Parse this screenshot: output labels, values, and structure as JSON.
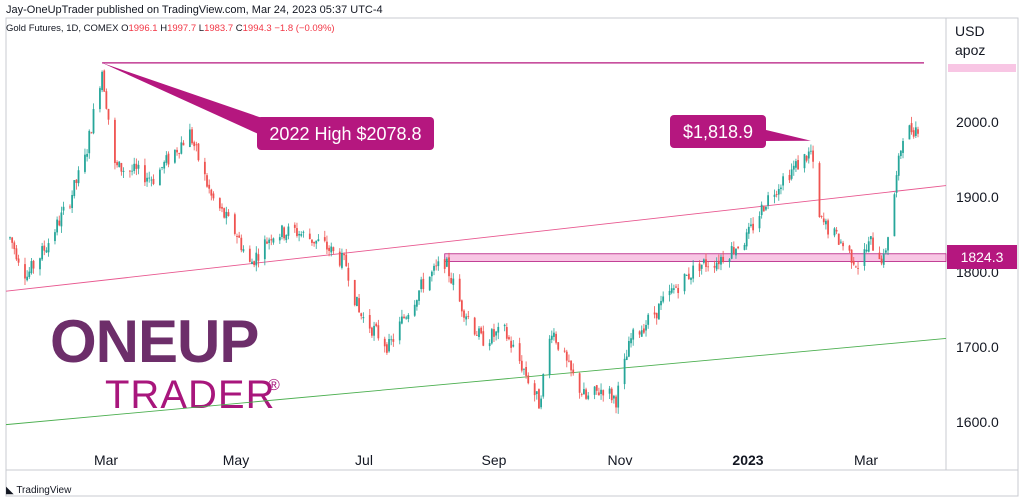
{
  "header": {
    "published": "Jay-OneUpTrader published on TradingView.com, Mar 24, 2023 05:37 UTC-4"
  },
  "symbol_line": {
    "name": "Gold Futures, 1D, COMEX",
    "o_label": "O",
    "o_value": "1996.1",
    "h_label": "H",
    "h_value": "1997.7",
    "l_label": "L",
    "l_value": "1983.7",
    "c_label": "C",
    "c_value": "1994.3",
    "change": "−1.8 (−0.09%)"
  },
  "footer": {
    "brand": "TradingView",
    "logo_icon": "tradingview-logo-icon"
  },
  "logo": {
    "line1": "ONEUP",
    "line2": "TRADER",
    "registered": "®"
  },
  "colors": {
    "up": "#26a69a",
    "down": "#ef5350",
    "magenta": "#b5177f",
    "zone_fill": "#f8c6e4",
    "trend_pink": "#e8578f",
    "trend_green": "#4caf50",
    "logo_purple": "#6d2e6a",
    "logo_magenta": "#a8167c"
  },
  "chart_data": {
    "type": "candlestick",
    "title": "",
    "currency_label": [
      "USD",
      "apoz"
    ],
    "x_ticks": [
      "Mar",
      "May",
      "Jul",
      "Sep",
      "Nov",
      "2023",
      "Mar"
    ],
    "y_ticks": [
      "2000.0",
      "1900.0",
      "1800.0",
      "1700.0",
      "1600.0"
    ],
    "ylim": [
      1570,
      2160
    ],
    "price_badge": "1824.3",
    "annotations": [
      {
        "text": "2022 High $2078.8",
        "x": "2022-03-08",
        "y": 2078.8
      },
      {
        "text": "$1,818.9",
        "x": "2023-02-02",
        "y": 1975
      }
    ],
    "levels": [
      {
        "name": "high-line",
        "y": 2078.8,
        "from": "2022-03-08"
      },
      {
        "name": "support-zone",
        "y_low": 1814,
        "y_high": 1824.3,
        "from": "2022-08-15"
      }
    ],
    "trendlines": [
      {
        "name": "pink",
        "from": [
          "2022-01-24",
          1775
        ],
        "to": [
          "2023-03-24",
          1911
        ]
      },
      {
        "name": "green",
        "from": [
          "2022-01-24",
          1597
        ],
        "to": [
          "2023-03-24",
          1708
        ]
      }
    ],
    "path": [
      [
        "2022-01-24",
        1845
      ],
      [
        "2022-02-01",
        1795
      ],
      [
        "2022-02-10",
        1835
      ],
      [
        "2022-02-20",
        1890
      ],
      [
        "2022-02-28",
        1950
      ],
      [
        "2022-03-08",
        2070
      ],
      [
        "2022-03-14",
        1940
      ],
      [
        "2022-03-22",
        1935
      ],
      [
        "2022-04-01",
        1925
      ],
      [
        "2022-04-12",
        1965
      ],
      [
        "2022-04-18",
        1985
      ],
      [
        "2022-04-28",
        1900
      ],
      [
        "2022-05-10",
        1850
      ],
      [
        "2022-05-16",
        1810
      ],
      [
        "2022-05-26",
        1850
      ],
      [
        "2022-06-06",
        1855
      ],
      [
        "2022-06-20",
        1835
      ],
      [
        "2022-06-30",
        1810
      ],
      [
        "2022-07-06",
        1745
      ],
      [
        "2022-07-20",
        1700
      ],
      [
        "2022-07-27",
        1740
      ],
      [
        "2022-08-05",
        1785
      ],
      [
        "2022-08-15",
        1815
      ],
      [
        "2022-08-22",
        1760
      ],
      [
        "2022-09-01",
        1710
      ],
      [
        "2022-09-12",
        1720
      ],
      [
        "2022-09-21",
        1670
      ],
      [
        "2022-09-28",
        1625
      ],
      [
        "2022-10-04",
        1725
      ],
      [
        "2022-10-12",
        1670
      ],
      [
        "2022-10-20",
        1630
      ],
      [
        "2022-10-28",
        1645
      ],
      [
        "2022-11-03",
        1630
      ],
      [
        "2022-11-10",
        1710
      ],
      [
        "2022-11-21",
        1745
      ],
      [
        "2022-12-01",
        1780
      ],
      [
        "2022-12-12",
        1810
      ],
      [
        "2022-12-20",
        1815
      ],
      [
        "2023-01-03",
        1845
      ],
      [
        "2023-01-12",
        1895
      ],
      [
        "2023-01-20",
        1925
      ],
      [
        "2023-02-02",
        1960
      ],
      [
        "2023-02-06",
        1870
      ],
      [
        "2023-02-16",
        1840
      ],
      [
        "2023-02-24",
        1810
      ],
      [
        "2023-03-02",
        1840
      ],
      [
        "2023-03-08",
        1815
      ],
      [
        "2023-03-13",
        1905
      ],
      [
        "2023-03-17",
        1985
      ],
      [
        "2023-03-24",
        1994
      ]
    ]
  }
}
